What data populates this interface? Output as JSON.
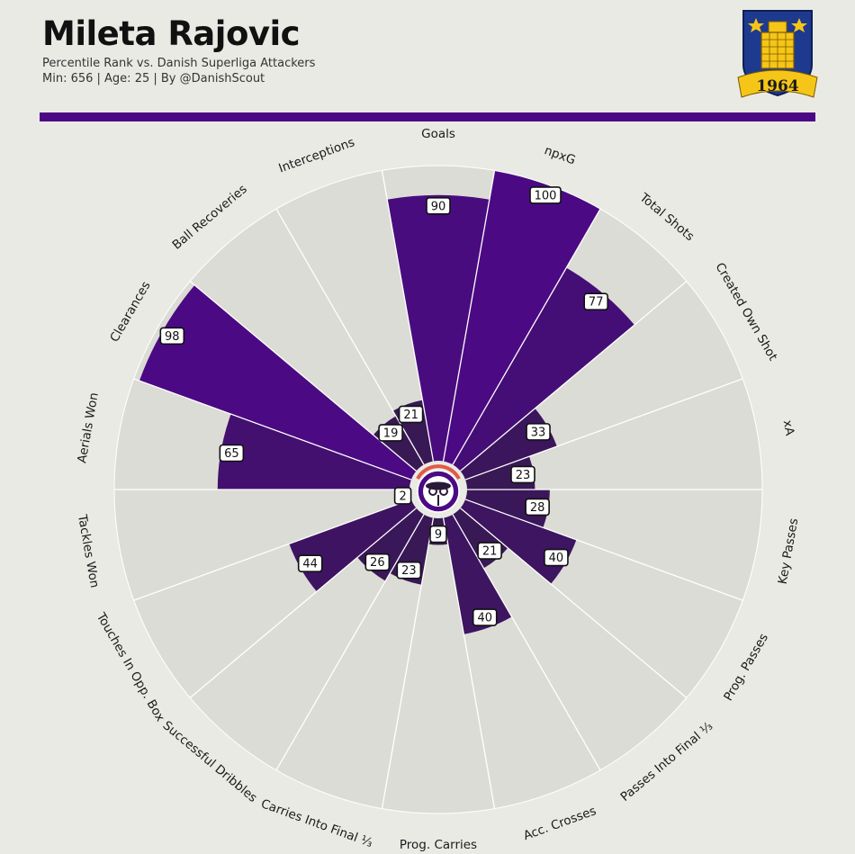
{
  "header": {
    "player_name": "Mileta Rajovic",
    "subtitle_line1": "Percentile Rank vs. Danish Superliga Attackers",
    "subtitle_line2": "Min: 656 | Age: 25 | By @DanishScout"
  },
  "crest": {
    "year": "1964"
  },
  "colors": {
    "background": "#eaeae5",
    "wedge_background": "#dcdcd6",
    "accent": "#4b0a84",
    "high_value": "#4b0a84",
    "low_value": "#331c48",
    "center_ring": "#e05b45"
  },
  "chart_data": {
    "type": "polar-bar",
    "ylim": [
      0,
      100
    ],
    "categories": [
      "Goals",
      "npxG",
      "Total Shots",
      "Created Own Shot",
      "xA",
      "Key Passes",
      "Prog. Passes",
      "Passes Into Final ⅓",
      "Acc. Crosses",
      "Prog. Carries",
      "Carries Into Final ⅓",
      "Successful Dribbles",
      "Touches In Opp. Box",
      "Tackles Won",
      "Aerials Won",
      "Clearances",
      "Ball Recoveries",
      "Interceptions"
    ],
    "values": [
      90,
      100,
      77,
      33,
      23,
      28,
      40,
      21,
      40,
      9,
      23,
      26,
      44,
      2,
      65,
      98,
      19,
      21
    ]
  }
}
